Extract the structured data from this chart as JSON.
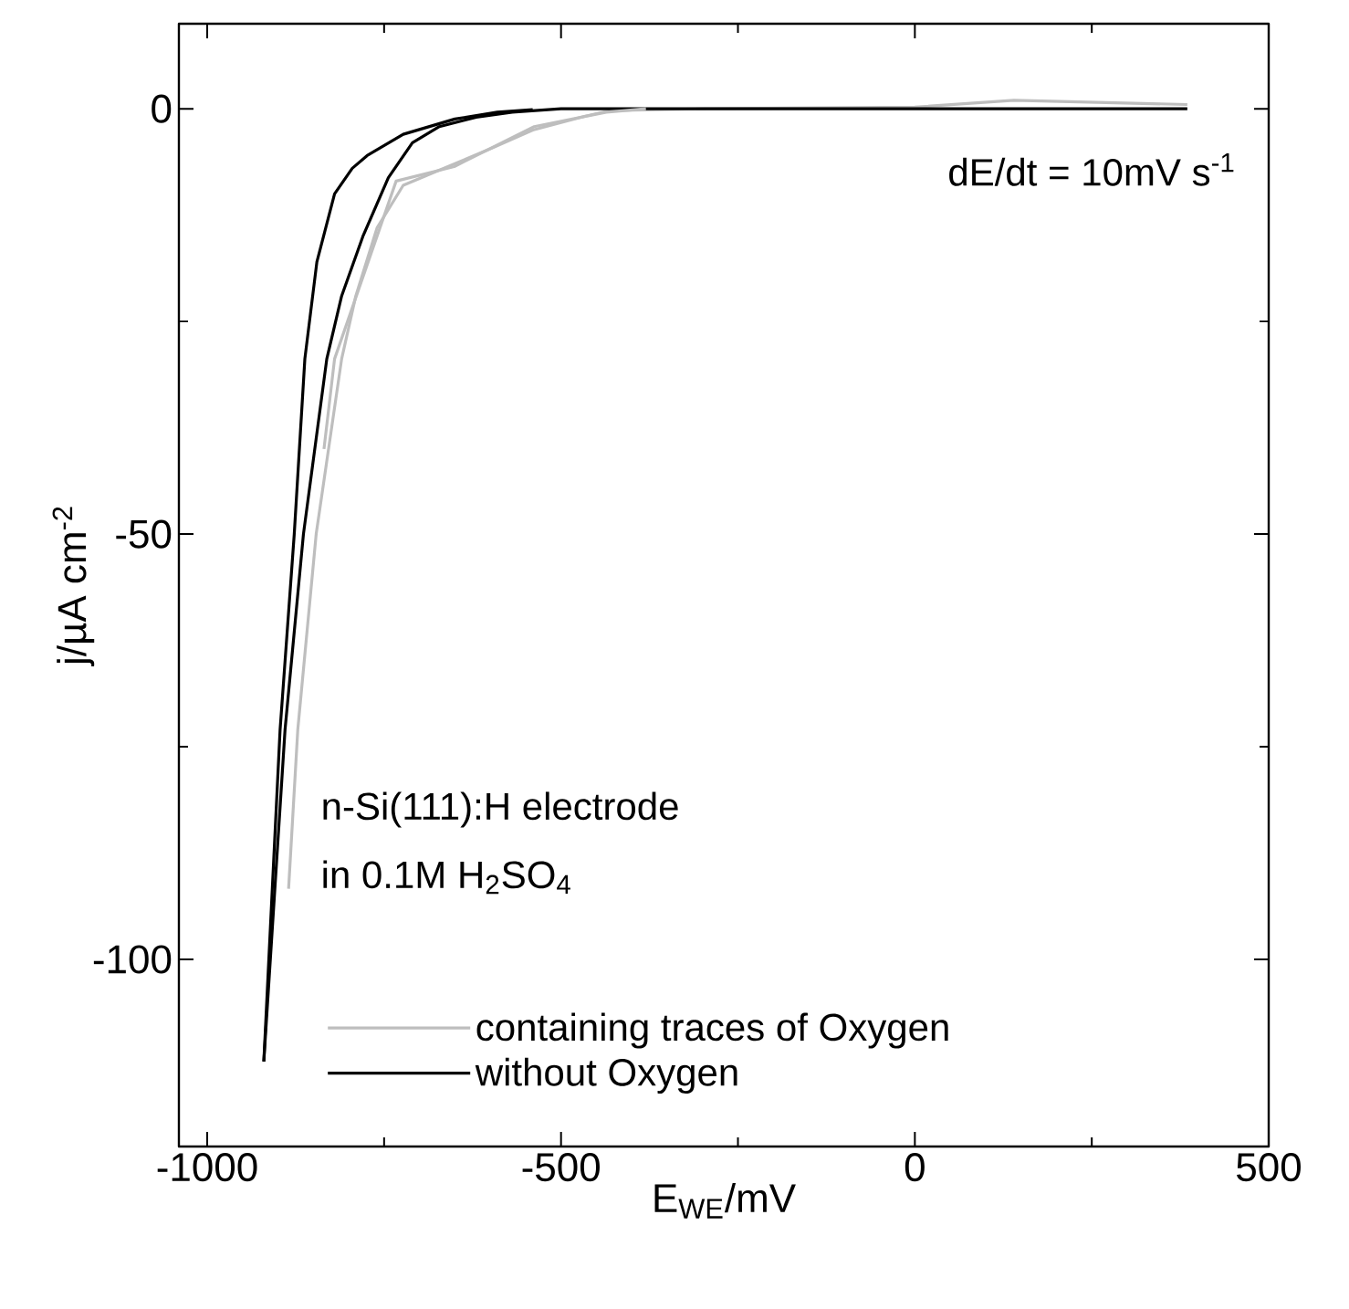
{
  "chart_data": {
    "type": "line",
    "xlabel": "E$_{WE}$/mV",
    "ylabel": "j/µA cm$^{-2}$",
    "annotations": [
      "dE/dt = 10mV s$^{-1}$",
      "n-Si(111):H electrode",
      "in 0.1M H$_{2}$SO$_{4}$"
    ],
    "xlim": [
      -1040,
      500
    ],
    "ylim": [
      -122,
      10
    ],
    "xticks": [
      -1000,
      -500,
      0,
      500
    ],
    "yticks": [
      -100,
      -50,
      0
    ],
    "grid": false,
    "legend": "bottom left",
    "marker": "none",
    "line_style": "solid",
    "series": [
      {
        "name": "containing traces of Oxygen",
        "color": "#bebebe",
        "x": [
          385,
          140,
          0,
          -300,
          -430,
          -467,
          -540,
          -600,
          -680,
          -723,
          -760,
          -790,
          -810,
          -846,
          -872,
          -885
        ],
        "values": [
          0.5,
          1,
          0.2,
          0,
          -0.2,
          -0.9,
          -2.5,
          -4.7,
          -7.5,
          -9,
          -14,
          -22,
          -29.4,
          -50,
          -73,
          -91.7
        ]
      },
      {
        "name": "without Oxygen",
        "color": "#000000",
        "x": [
          385,
          0,
          -300,
          -500,
          -569,
          -620,
          -672,
          -710,
          -744,
          -780,
          -810,
          -831,
          -864,
          -890,
          -920
        ],
        "values": [
          0,
          0,
          0,
          0,
          -0.4,
          -1,
          -2.1,
          -4,
          -8.1,
          -15,
          -22,
          -29.4,
          -50,
          -73,
          -112
        ]
      },
      {
        "color": "#bebebe",
        "x": [
          -835,
          -820,
          -733,
          -651,
          -538,
          -436,
          -380
        ],
        "values": [
          -40,
          -29.4,
          -8.5,
          -6.8,
          -2.1,
          -0.4,
          0
        ]
      },
      {
        "color": "#000000",
        "x": [
          -920,
          -897,
          -877,
          -862,
          -845,
          -820,
          -795,
          -774,
          -723,
          -650,
          -590,
          -540
        ],
        "values": [
          -112,
          -73,
          -50,
          -29.4,
          -18,
          -10,
          -7,
          -5.5,
          -3,
          -1.2,
          -0.4,
          -0.1
        ]
      }
    ]
  }
}
